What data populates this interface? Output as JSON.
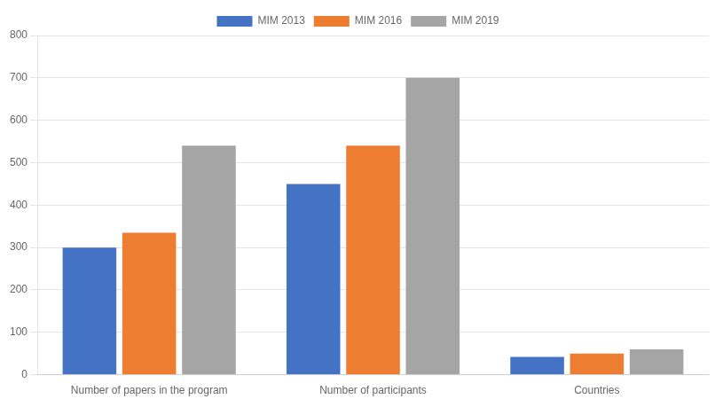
{
  "chart_data": {
    "type": "bar",
    "categories": [
      "Number of papers in the program",
      "Number of participants",
      "Countries"
    ],
    "series": [
      {
        "name": "MIM 2013",
        "color": "#4472C4",
        "values": [
          300,
          450,
          42
        ]
      },
      {
        "name": "MIM 2016",
        "color": "#ED7D31",
        "values": [
          335,
          540,
          50
        ]
      },
      {
        "name": "MIM 2019",
        "color": "#A5A5A5",
        "values": [
          540,
          700,
          60
        ]
      }
    ],
    "ylim": [
      0,
      800
    ],
    "yticks": [
      0,
      100,
      200,
      300,
      400,
      500,
      600,
      700,
      800
    ],
    "grid": true,
    "legend": "top"
  }
}
